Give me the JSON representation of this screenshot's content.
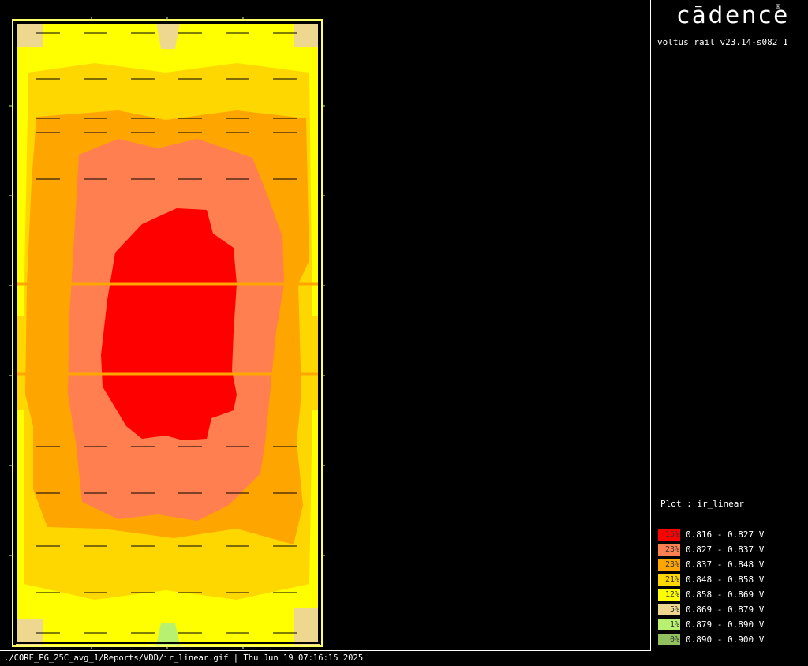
{
  "header": {
    "logo_text": "cādence",
    "logo_reg": "®",
    "version": "voltus_rail v23.14-s082_1"
  },
  "plot": {
    "label": "Plot : ir_linear"
  },
  "legend": [
    {
      "pct": "15%",
      "range": "0.816 - 0.827 V",
      "color": "#ff0000"
    },
    {
      "pct": "23%",
      "range": "0.827 - 0.837 V",
      "color": "#ff7f50"
    },
    {
      "pct": "23%",
      "range": "0.837 - 0.848 V",
      "color": "#ffa500"
    },
    {
      "pct": "21%",
      "range": "0.848 - 0.858 V",
      "color": "#ffd700"
    },
    {
      "pct": "12%",
      "range": "0.858 - 0.869 V",
      "color": "#ffff00"
    },
    {
      "pct": "5%",
      "range": "0.869 - 0.879 V",
      "color": "#eed890"
    },
    {
      "pct": "1%",
      "range": "0.879 - 0.890 V",
      "color": "#b8f070"
    },
    {
      "pct": "0%",
      "range": "0.890 - 0.900 V",
      "color": "#90c060"
    }
  ],
  "footer": {
    "path": "./CORE_PG_25C_avg_1/Reports/VDD/ir_linear.gif | Thu Jun 19 07:16:15 2025"
  }
}
